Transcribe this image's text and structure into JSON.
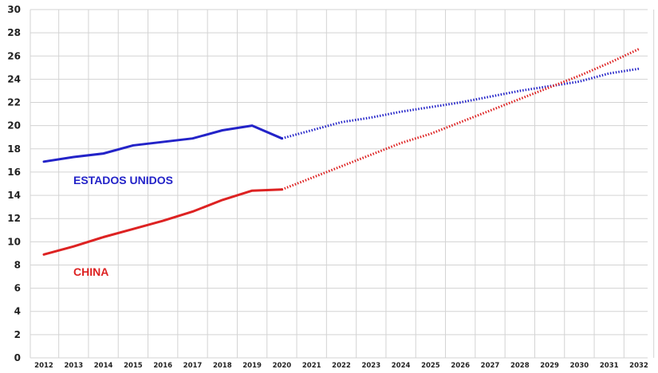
{
  "chart_data": {
    "type": "line",
    "x": [
      "2012",
      "2013",
      "2014",
      "2015",
      "2016",
      "2017",
      "2018",
      "2019",
      "2020",
      "2021",
      "2022",
      "2023",
      "2024",
      "2025",
      "2026",
      "2027",
      "2028",
      "2029",
      "2030",
      "2031",
      "2032"
    ],
    "ylim": [
      0,
      30
    ],
    "yticks": [
      0,
      2,
      4,
      6,
      8,
      10,
      12,
      14,
      16,
      18,
      20,
      22,
      24,
      26,
      28,
      30
    ],
    "grid": true,
    "series": [
      {
        "name": "ESTADOS UNIDOS",
        "color": "#2323c8",
        "actual": [
          16.9,
          17.3,
          17.6,
          18.3,
          18.6,
          18.9,
          19.6,
          20.0,
          18.9
        ],
        "projected": [
          18.9,
          19.6,
          20.3,
          20.7,
          21.2,
          21.6,
          22.0,
          22.5,
          23.0,
          23.4,
          23.8,
          24.5,
          24.9
        ]
      },
      {
        "name": "CHINA",
        "color": "#dd2222",
        "actual": [
          8.9,
          9.6,
          10.4,
          11.1,
          11.8,
          12.6,
          13.6,
          14.4,
          14.5
        ],
        "projected": [
          14.5,
          15.5,
          16.5,
          17.5,
          18.5,
          19.3,
          20.3,
          21.3,
          22.3,
          23.3,
          24.3,
          25.4,
          26.6
        ]
      }
    ]
  }
}
